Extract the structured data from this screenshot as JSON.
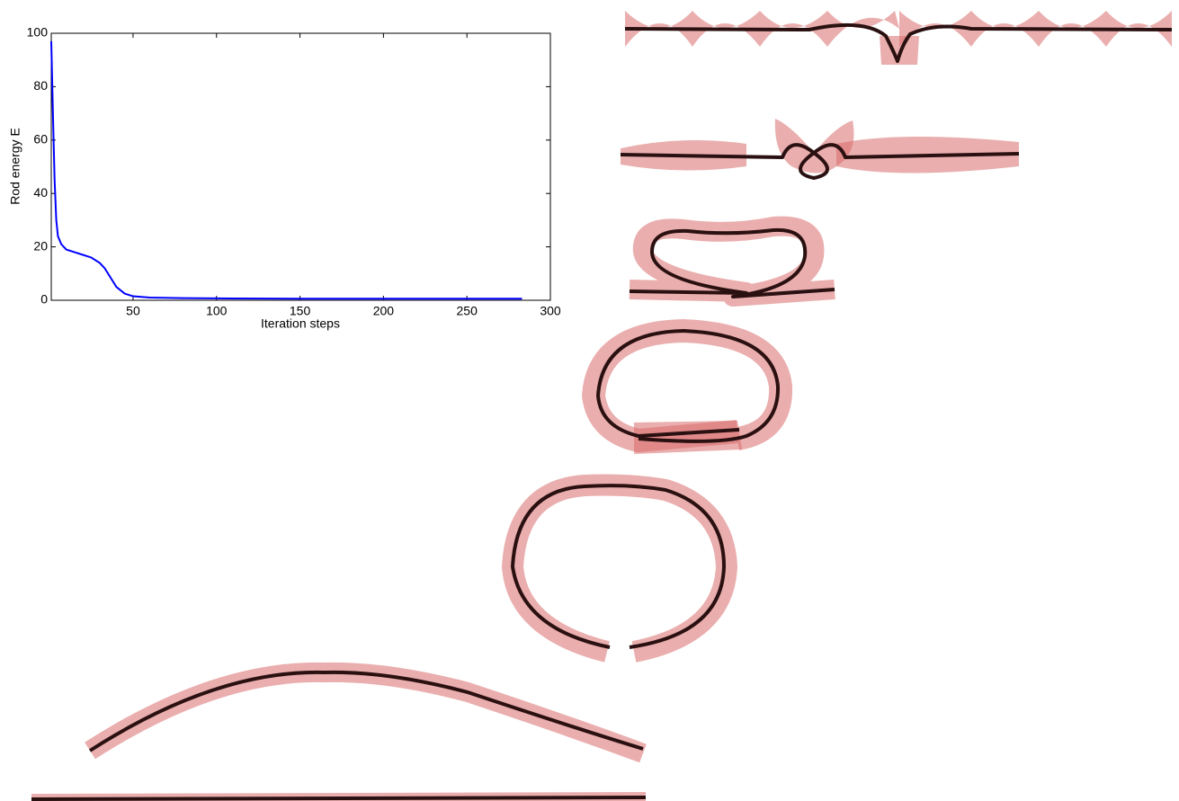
{
  "chart_data": {
    "type": "line",
    "x_label": "Iteration steps",
    "y_label": "Rod energy E",
    "x": [
      1,
      2,
      3,
      4,
      5,
      7,
      10,
      15,
      20,
      25,
      30,
      33,
      36,
      40,
      45,
      50,
      60,
      80,
      100,
      150,
      200,
      250,
      283
    ],
    "values": [
      97,
      70,
      45,
      30,
      24,
      21,
      19,
      18,
      17,
      16,
      14,
      12,
      9,
      5,
      2.5,
      1.5,
      1,
      0.8,
      0.7,
      0.6,
      0.6,
      0.6,
      0.6
    ],
    "color": "#0000ff",
    "xlim": [
      1,
      300
    ],
    "xticks": [
      50,
      100,
      150,
      200,
      250,
      300
    ],
    "ylim": [
      0,
      100
    ],
    "yticks": [
      0,
      20,
      40,
      60,
      80,
      100
    ]
  }
}
